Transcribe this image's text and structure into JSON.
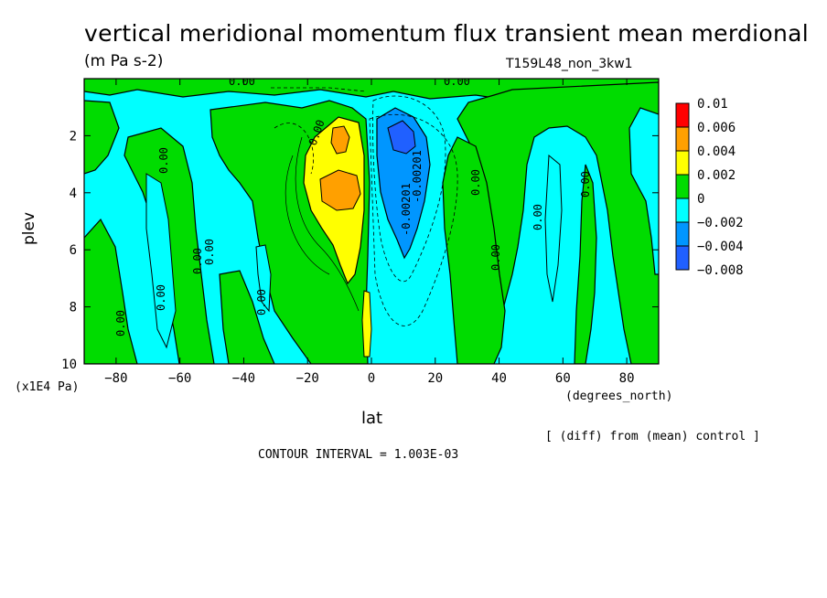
{
  "chart_data": {
    "type": "heatmap",
    "title": "vertical meridional momentum flux transient mean merdional",
    "units": "(m Pa s-2)",
    "run_label": "T159L48_non_3kw1",
    "xlabel": "lat",
    "ylabel": "plev",
    "x_unit_label": "(degrees_north)",
    "y_unit_label": "(x1E4 Pa)",
    "xlim": [
      -90,
      90
    ],
    "ylim": [
      10,
      0
    ],
    "x_ticks": [
      -80,
      -60,
      -40,
      -20,
      0,
      20,
      40,
      60,
      80
    ],
    "x_tick_labels": [
      "−80",
      "−60",
      "−40",
      "−20",
      "0",
      "20",
      "40",
      "60",
      "80"
    ],
    "y_ticks": [
      2,
      4,
      6,
      8,
      10
    ],
    "y_tick_labels": [
      "2",
      "4",
      "6",
      "8",
      "10"
    ],
    "note": "[ (diff) from (mean) control ]",
    "contour_interval_text": "CONTOUR INTERVAL = 1.003E-03",
    "colorbar": {
      "levels": [
        0.01,
        0.006,
        0.004,
        0.002,
        0,
        -0.002,
        -0.004,
        -0.008
      ],
      "labels": [
        "0.01",
        "0.006",
        "0.004",
        "0.002",
        "0",
        "−0.002",
        "−0.004",
        "−0.008"
      ],
      "colors": [
        "#ff0000",
        "#ffa000",
        "#ffff00",
        "#00dc00",
        "#00ffff",
        "#0096ff",
        "#2060ff"
      ]
    },
    "contour_labels": [
      "0.00",
      "0.00",
      "0.00",
      "0.00",
      "0.00",
      "0.00",
      "0.00",
      "0.00",
      "0.00",
      "0.00",
      "0.00",
      "0.00",
      "0.00",
      "-0.00201",
      "-0.00201"
    ],
    "features": [
      {
        "name": "positive maximum",
        "lat": -8,
        "plev": 4,
        "value_range": [
          0.004,
          0.006
        ]
      },
      {
        "name": "negative minimum",
        "lat": 10,
        "plev": 2.2,
        "value_range": [
          -0.008,
          -0.004
        ]
      }
    ]
  }
}
